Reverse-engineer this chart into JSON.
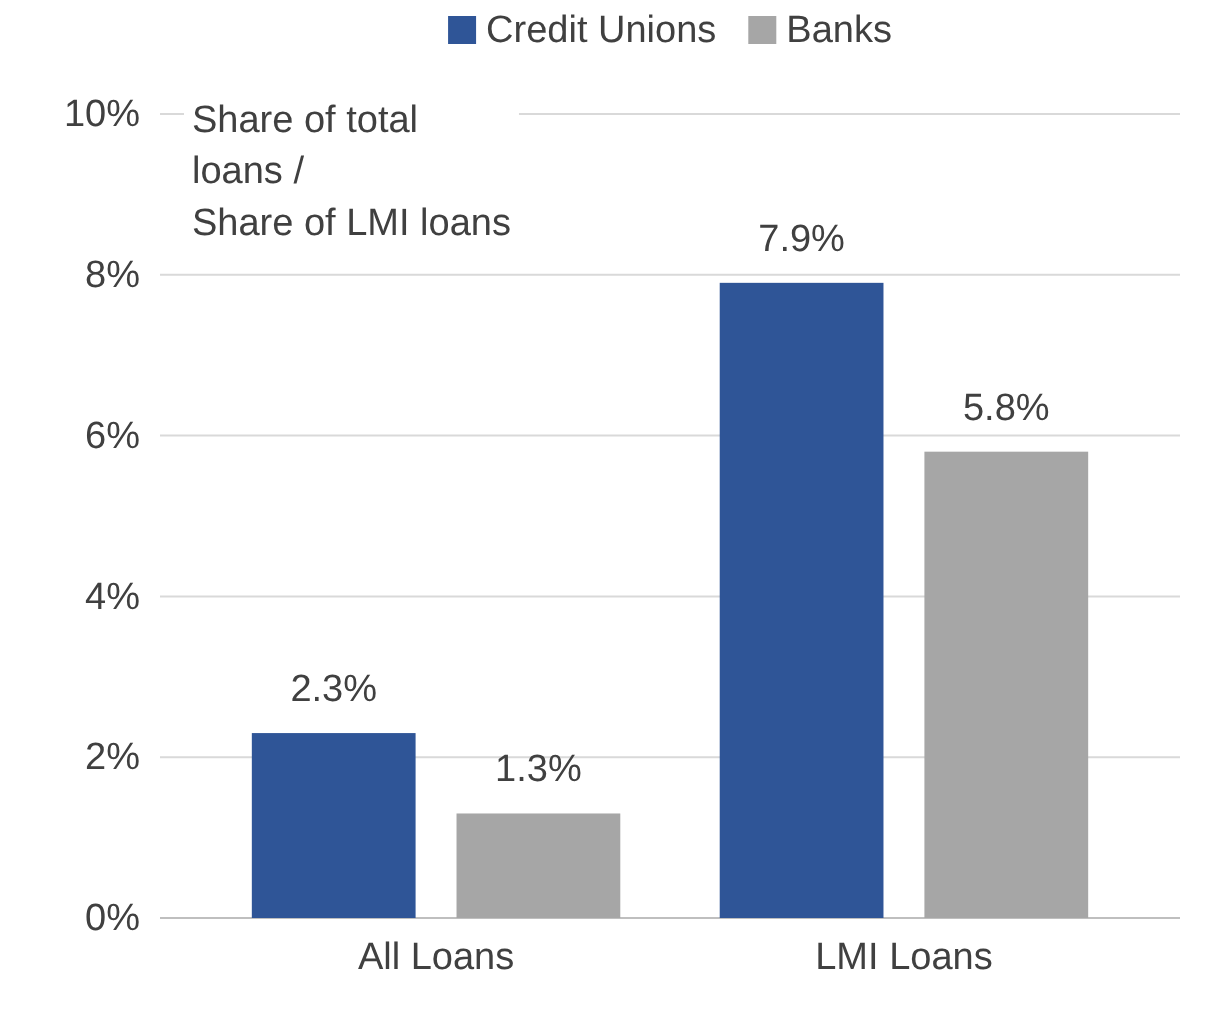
{
  "chart_data": {
    "type": "bar",
    "ylabel": "Share of total loans /\nShare of LMI loans",
    "categories": [
      "All Loans",
      "LMI Loans"
    ],
    "series": [
      {
        "name": "Credit Unions",
        "color": "#2f5597",
        "values": [
          2.3,
          7.9
        ],
        "value_labels": [
          "2.3%",
          "7.9%"
        ]
      },
      {
        "name": "Banks",
        "color": "#a6a6a6",
        "values": [
          1.3,
          5.8
        ],
        "value_labels": [
          "1.3%",
          "5.8%"
        ]
      }
    ],
    "ylim": [
      0,
      10
    ],
    "yticks": [
      {
        "value": 0,
        "label": "0%"
      },
      {
        "value": 2,
        "label": "2%"
      },
      {
        "value": 4,
        "label": "4%"
      },
      {
        "value": 6,
        "label": "6%"
      },
      {
        "value": 8,
        "label": "8%"
      },
      {
        "value": 10,
        "label": "10%"
      }
    ],
    "grid": "y",
    "legend": "top"
  }
}
